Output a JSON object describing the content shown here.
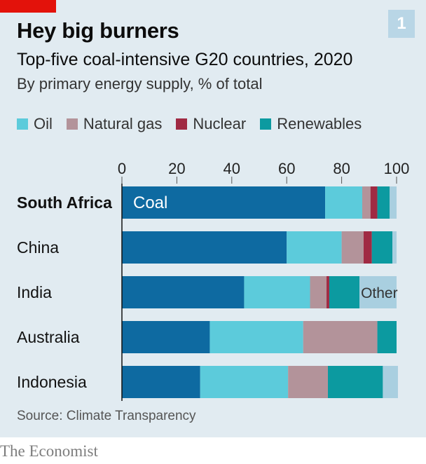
{
  "header": {
    "title": "Hey big burners",
    "subtitle": "Top-five coal-intensive G20 countries, 2020",
    "subsubtitle": "By primary energy supply, % of total",
    "chart_number": "1"
  },
  "legend": [
    {
      "label": "Oil",
      "color": "#5ccbdb"
    },
    {
      "label": "Natural gas",
      "color": "#b3939a"
    },
    {
      "label": "Nuclear",
      "color": "#a02a43"
    },
    {
      "label": "Renewables",
      "color": "#0c9aa0"
    }
  ],
  "chart_data": {
    "type": "bar",
    "orientation": "horizontal",
    "stacked": true,
    "categories": [
      "South Africa",
      "China",
      "India",
      "Australia",
      "Indonesia"
    ],
    "highlight_category": "South Africa",
    "xlim": [
      0,
      100
    ],
    "xticks": [
      0,
      20,
      40,
      60,
      80,
      100
    ],
    "tick_labels": [
      "0",
      "20",
      "40",
      "60",
      "80",
      "100"
    ],
    "series": [
      {
        "name": "Coal",
        "color": "#0e6aa1",
        "values": [
          74,
          60,
          44.5,
          32,
          28.5
        ]
      },
      {
        "name": "Oil",
        "color": "#5ccbdb",
        "values": [
          13.5,
          20,
          24,
          34,
          32
        ]
      },
      {
        "name": "Natural gas",
        "color": "#b3939a",
        "values": [
          3,
          8,
          6,
          27,
          14.5
        ]
      },
      {
        "name": "Nuclear",
        "color": "#a02a43",
        "values": [
          2.5,
          3,
          1,
          0,
          0
        ]
      },
      {
        "name": "Renewables",
        "color": "#0c9aa0",
        "values": [
          4.5,
          7.5,
          11,
          7,
          20
        ]
      },
      {
        "name": "Other",
        "color": "#a9cfe0",
        "values": [
          2.5,
          1.5,
          13.5,
          0,
          5.5
        ]
      }
    ],
    "annotations": [
      {
        "text": "Coal",
        "category": "South Africa",
        "series": "Coal"
      },
      {
        "text": "Other",
        "category": "India",
        "series": "Other"
      }
    ]
  },
  "footer": {
    "source": "Source: Climate Transparency",
    "brand": "The Economist"
  }
}
